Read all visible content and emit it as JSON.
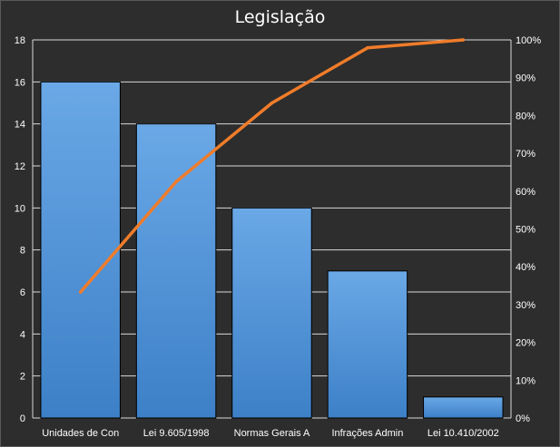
{
  "chart_data": {
    "type": "bar",
    "title": "Legislação",
    "categories": [
      "Unidades de Con",
      "Lei 9.605/1998",
      "Normas Gerais A",
      "Infrações Admin",
      "Lei 10.410/2002"
    ],
    "series": [
      {
        "type": "bar",
        "values": [
          16,
          14,
          10,
          7,
          1
        ]
      },
      {
        "type": "line",
        "axis": "secondary",
        "values": [
          33.3,
          62.5,
          83.3,
          97.9,
          100
        ]
      }
    ],
    "y_ticks": [
      "0",
      "2",
      "4",
      "6",
      "8",
      "10",
      "12",
      "14",
      "16",
      "18"
    ],
    "y2_ticks": [
      "0%",
      "10%",
      "20%",
      "30%",
      "40%",
      "50%",
      "60%",
      "70%",
      "80%",
      "90%",
      "100%"
    ],
    "ylim": [
      0,
      18
    ],
    "y2lim": [
      0,
      100
    ],
    "grid": "horizontal",
    "colors": {
      "bar": "#4a90d9",
      "line": "#f07c2a",
      "background": "#2d2d2d"
    }
  }
}
